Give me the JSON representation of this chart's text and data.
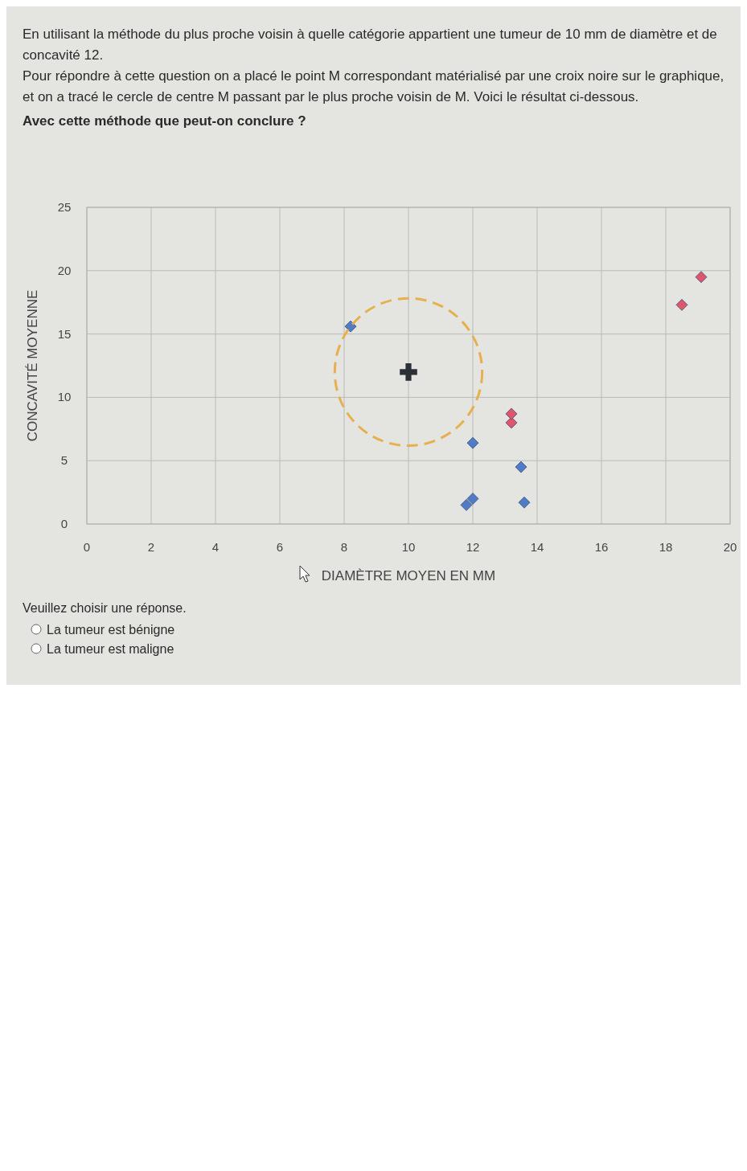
{
  "chart_data": {
    "type": "scatter",
    "title": "En utilisant la méthode du plus proche voisin à quelle catégorie appartient une tumeur de 10 mm de diamètre et de concavité 12.",
    "subtitle": "Pour répondre à cette question on a placé le point M correspondant matérialisé par une croix noire sur le graphique, et on a tracé le cercle de centre M passant par le plus proche voisin de M. Voici le résultat ci-dessous.",
    "xlabel": "DIAMÈTRE MOYEN EN MM",
    "ylabel": "CONCAVITÉ MOYENNE",
    "annotations": [
      "Avec cette méthode que peut-on conclure ?",
      "Veuillez choisir une réponse.",
      "La tumeur est bénigne",
      "La tumeur est maligne"
    ],
    "xlim": [
      0,
      20
    ],
    "ylim": [
      0,
      25
    ],
    "xticks": [
      0,
      2,
      4,
      6,
      8,
      10,
      12,
      14,
      16,
      18,
      20
    ],
    "yticks": [
      0,
      5,
      10,
      15,
      20,
      25
    ],
    "grid": true,
    "marker": "diamond",
    "series": [
      {
        "color": "#4f7cc4",
        "x": [
          8.2,
          11.8,
          12.0,
          12.0,
          13.5,
          13.6
        ],
        "values": [
          15.6,
          1.5,
          2.0,
          6.4,
          4.5,
          1.7
        ]
      },
      {
        "color": "#df566c",
        "x": [
          13.2,
          13.2,
          18.5,
          19.1
        ],
        "values": [
          8.0,
          8.7,
          17.3,
          19.5
        ]
      },
      {
        "color": "#2b3137",
        "marker": "cross",
        "x": [
          10
        ],
        "values": [
          12
        ]
      }
    ]
  }
}
